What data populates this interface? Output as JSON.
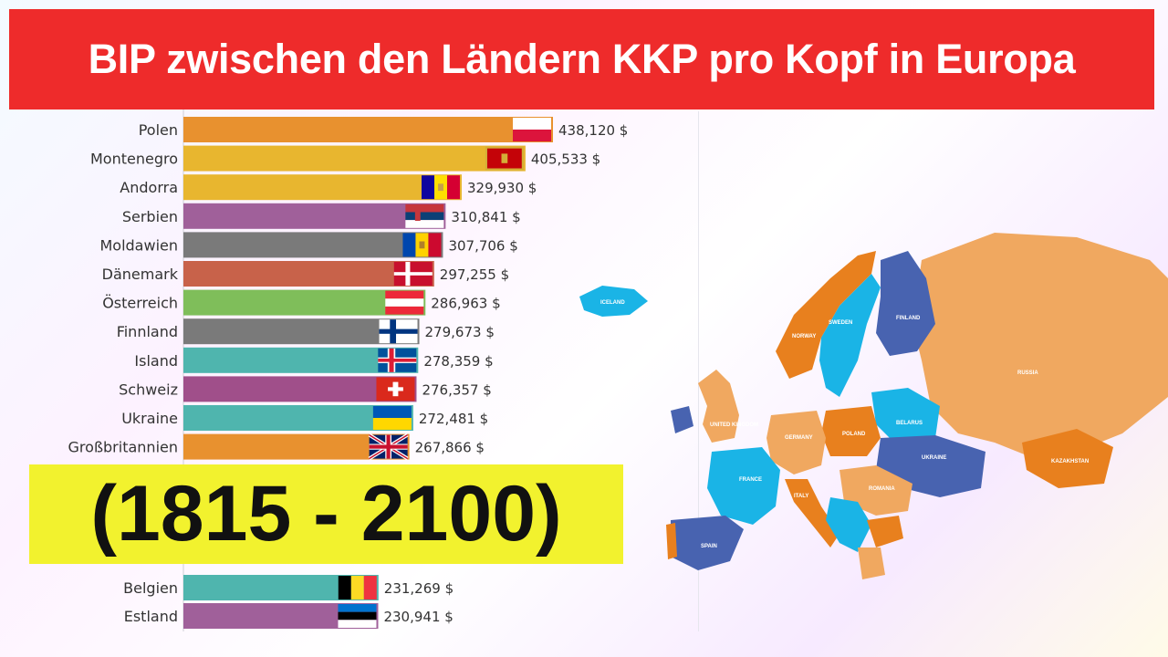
{
  "title": "BIP zwischen den Ländern KKP pro Kopf in Europa",
  "year_range": "(1815 - 2100)",
  "chart_data": {
    "type": "bar",
    "orientation": "horizontal",
    "categories": [
      "Polen",
      "Montenegro",
      "Andorra",
      "Serbien",
      "Moldawien",
      "Dänemark",
      "Österreich",
      "Finnland",
      "Island",
      "Schweiz",
      "Ukraine",
      "Großbritannien",
      "Belgien",
      "Estland"
    ],
    "values": [
      438120,
      405533,
      329930,
      310841,
      307706,
      297255,
      286963,
      279673,
      278359,
      276357,
      272481,
      267866,
      231269,
      230941
    ],
    "value_labels": [
      "438,120 $",
      "405,533 $",
      "329,930 $",
      "310,841 $",
      "307,706 $",
      "297,255 $",
      "286,963 $",
      "279,673 $",
      "278,359 $",
      "276,357 $",
      "272,481 $",
      "267,866 $",
      "231,269 $",
      "230,941 $"
    ],
    "colors": [
      "#e8912f",
      "#e8b62f",
      "#e8b62f",
      "#a0609a",
      "#7a7a7a",
      "#c8624a",
      "#7fbe5a",
      "#7a7a7a",
      "#4fb5ae",
      "#a04f8a",
      "#4fb5ae",
      "#e8912f",
      "#4fb5ae",
      "#a0609a"
    ],
    "flags": [
      "pl-flag-icon",
      "me-flag-icon",
      "ad-flag-icon",
      "rs-flag-icon",
      "md-flag-icon",
      "dk-flag-icon",
      "at-flag-icon",
      "fi-flag-icon",
      "is-flag-icon",
      "ch-flag-icon",
      "ua-flag-icon",
      "gb-flag-icon",
      "be-flag-icon",
      "ee-flag-icon"
    ],
    "xlim": [
      0,
      560000
    ]
  },
  "map_labels": {
    "iceland": "ICELAND",
    "norway": "NORWAY",
    "sweden": "SWEDEN",
    "finland": "FINLAND",
    "russia": "RUSSIA",
    "uk": "UNITED KINGDOM",
    "germany": "GERMANY",
    "poland": "POLAND",
    "belarus": "BELARUS",
    "ukraine": "UKRAINE",
    "france": "FRANCE",
    "italy": "ITALY",
    "romania": "ROMANIA",
    "spain": "SPAIN",
    "kazakhstan": "KAZAKHSTAN"
  }
}
